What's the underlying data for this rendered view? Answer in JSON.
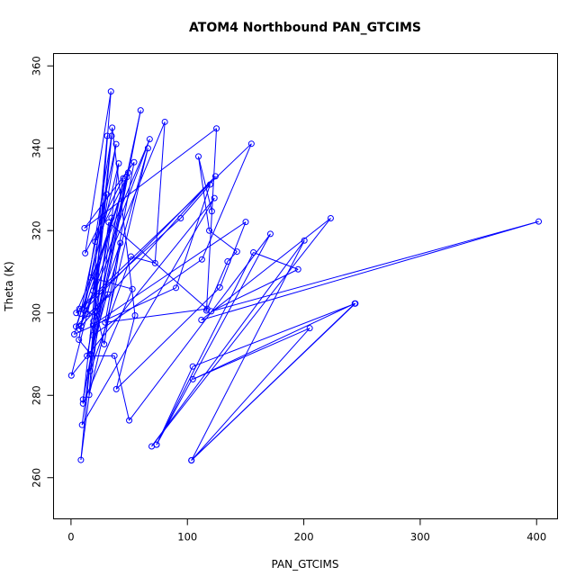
{
  "chart_data": {
    "type": "line",
    "title": "ATOM4 Northbound PAN_GTCIMS",
    "xlabel": "PAN_GTCIMS",
    "ylabel": "Theta (K)",
    "xlim": [
      -15,
      418
    ],
    "ylim": [
      250,
      363
    ],
    "xticks": [
      0,
      100,
      200,
      300,
      400
    ],
    "yticks": [
      260,
      280,
      300,
      320,
      340,
      360
    ],
    "grid": false,
    "legend": "none",
    "marker": "open-circle",
    "series": [
      {
        "color": "#0000ff",
        "points": [
          [
            73.5,
            268.0
          ],
          [
            104.6,
            287.0
          ],
          [
            244.3,
            302.3
          ],
          [
            103.4,
            264.2
          ],
          [
            243.8,
            302.3
          ],
          [
            104.7,
            283.9
          ],
          [
            205.1,
            296.3
          ],
          [
            103.5,
            264.2
          ],
          [
            200.5,
            317.6
          ],
          [
            69.3,
            267.6
          ],
          [
            223.1,
            323.0
          ],
          [
            112.0,
            298.3
          ],
          [
            401.8,
            322.2
          ],
          [
            120.5,
            300.4
          ],
          [
            195.1,
            310.6
          ],
          [
            156.7,
            314.7
          ],
          [
            73.5,
            268.0
          ],
          [
            171.3,
            319.2
          ],
          [
            50.0,
            273.9
          ],
          [
            37.3,
            289.6
          ],
          [
            13.7,
            289.6
          ],
          [
            18.9,
            297.1
          ],
          [
            150.1,
            322.1
          ],
          [
            127.9,
            306.2
          ],
          [
            38.9,
            281.5
          ],
          [
            55.0,
            299.4
          ],
          [
            35.4,
            345.0
          ],
          [
            10.3,
            278.0
          ],
          [
            52.8,
            305.8
          ],
          [
            17.0,
            308.6
          ],
          [
            41.0,
            336.3
          ],
          [
            8.5,
            264.3
          ],
          [
            34.9,
            343.0
          ],
          [
            6.8,
            293.5
          ],
          [
            16.8,
            290.0
          ],
          [
            66.1,
            340.0
          ],
          [
            15.6,
            280.1
          ],
          [
            31.1,
            343.0
          ],
          [
            19.0,
            305.4
          ],
          [
            38.8,
            341.0
          ],
          [
            8.1,
            299.8
          ],
          [
            2.8,
            294.8
          ],
          [
            90.2,
            306.1
          ],
          [
            119.5,
            331.2
          ],
          [
            94.2,
            323.0
          ],
          [
            4.5,
            300.0
          ],
          [
            67.6,
            342.2
          ],
          [
            7.1,
            296.1
          ],
          [
            80.6,
            346.4
          ],
          [
            72.2,
            312.1
          ],
          [
            51.5,
            313.7
          ],
          [
            16.4,
            285.9
          ],
          [
            59.8,
            349.2
          ],
          [
            18.8,
            294.6
          ],
          [
            112.5,
            313.0
          ],
          [
            155.0,
            341.1
          ],
          [
            7.2,
            301.0
          ],
          [
            22.4,
            299.3
          ],
          [
            28.5,
            292.4
          ],
          [
            42.4,
            317.0
          ],
          [
            19.3,
            298.0
          ],
          [
            34.3,
            353.8
          ],
          [
            12.2,
            314.5
          ],
          [
            44.9,
            332.7
          ],
          [
            10.3,
            279.0
          ],
          [
            48.0,
            333.0
          ],
          [
            20.8,
            317.3
          ],
          [
            30.7,
            328.8
          ],
          [
            8.7,
            296.8
          ],
          [
            124.1,
            333.2
          ],
          [
            11.5,
            300.7
          ],
          [
            49.2,
            334.1
          ],
          [
            4.3,
            296.7
          ],
          [
            31.7,
            304.5
          ],
          [
            21.1,
            300.5
          ],
          [
            34.8,
            323.1
          ],
          [
            14.0,
            299.8
          ],
          [
            0.3,
            284.8
          ],
          [
            123.2,
            327.9
          ],
          [
            9.5,
            272.8
          ],
          [
            32.4,
            322.0
          ],
          [
            117.0,
            301.0
          ],
          [
            29.3,
            297.7
          ],
          [
            54.2,
            336.6
          ],
          [
            11.6,
            320.6
          ],
          [
            125.0,
            344.8
          ],
          [
            116.4,
            300.6
          ],
          [
            134.5,
            312.5
          ],
          [
            142.6,
            314.9
          ],
          [
            118.8,
            320.0
          ],
          [
            109.5,
            338.0
          ],
          [
            121.0,
            324.7
          ]
        ]
      }
    ]
  }
}
